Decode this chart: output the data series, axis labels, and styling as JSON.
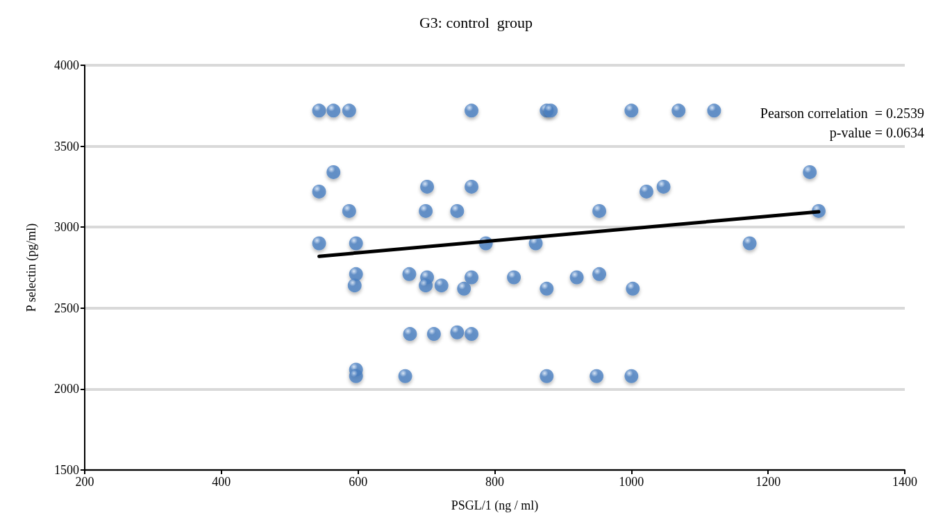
{
  "chart_data": {
    "type": "scatter",
    "title": "G3: control  group",
    "xlabel": "PSGL/1 (ng / ml)",
    "ylabel": "P selectin (pg/ml)",
    "xlim": [
      200,
      1400
    ],
    "xticks": [
      200,
      400,
      600,
      800,
      1000,
      1200,
      1400
    ],
    "ylim": [
      1500,
      4000
    ],
    "yticks": [
      1500,
      2000,
      2500,
      3000,
      3500,
      4000
    ],
    "grid": "y",
    "marker": "circle",
    "annotations": [
      "Pearson correlation  = 0.2539",
      "p-value = 0.0634"
    ],
    "series": [
      {
        "color": "#4a7fc1",
        "x": [
          543,
          564,
          587,
          766,
          876,
          882,
          1000,
          1069,
          1121,
          564,
          1261,
          543,
          1022,
          701,
          766,
          1047,
          587,
          699,
          745,
          953,
          1274,
          543,
          597,
          787,
          860,
          1173,
          597,
          675,
          953,
          701,
          766,
          828,
          920,
          595,
          699,
          722,
          755,
          876,
          1002,
          676,
          711,
          745,
          766,
          597,
          597,
          669,
          876,
          949,
          1000
        ],
        "values": [
          3720,
          3720,
          3720,
          3720,
          3720,
          3720,
          3720,
          3720,
          3720,
          3340,
          3340,
          3220,
          3220,
          3250,
          3250,
          3250,
          3100,
          3100,
          3100,
          3100,
          3100,
          2900,
          2900,
          2900,
          2900,
          2900,
          2710,
          2710,
          2710,
          2690,
          2690,
          2690,
          2690,
          2640,
          2640,
          2640,
          2620,
          2620,
          2620,
          2340,
          2340,
          2350,
          2340,
          2120,
          2080,
          2080,
          2080,
          2080,
          2080
        ]
      },
      {
        "type": "line",
        "color": "#000000",
        "marker": "none",
        "line_style": "solid",
        "x": [
          543,
          1274
        ],
        "values": [
          2820,
          3095
        ]
      }
    ]
  }
}
